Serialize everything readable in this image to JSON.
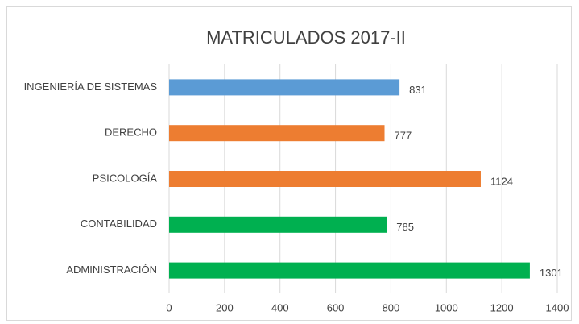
{
  "chart_data": {
    "type": "bar",
    "orientation": "horizontal",
    "title": "MATRICULADOS 2017-II",
    "categories": [
      "INGENIERÍA DE SISTEMAS",
      "DERECHO",
      "PSICOLOGÍA",
      "CONTABILIDAD",
      "ADMINISTRACIÓN"
    ],
    "values": [
      831,
      777,
      1124,
      785,
      1301
    ],
    "colors": [
      "#5b9bd5",
      "#ed7d31",
      "#ed7d31",
      "#00b050",
      "#00b050"
    ],
    "xlim": [
      0,
      1400
    ],
    "xticks": [
      0,
      200,
      400,
      600,
      800,
      1000,
      1200,
      1400
    ],
    "grid": true
  }
}
